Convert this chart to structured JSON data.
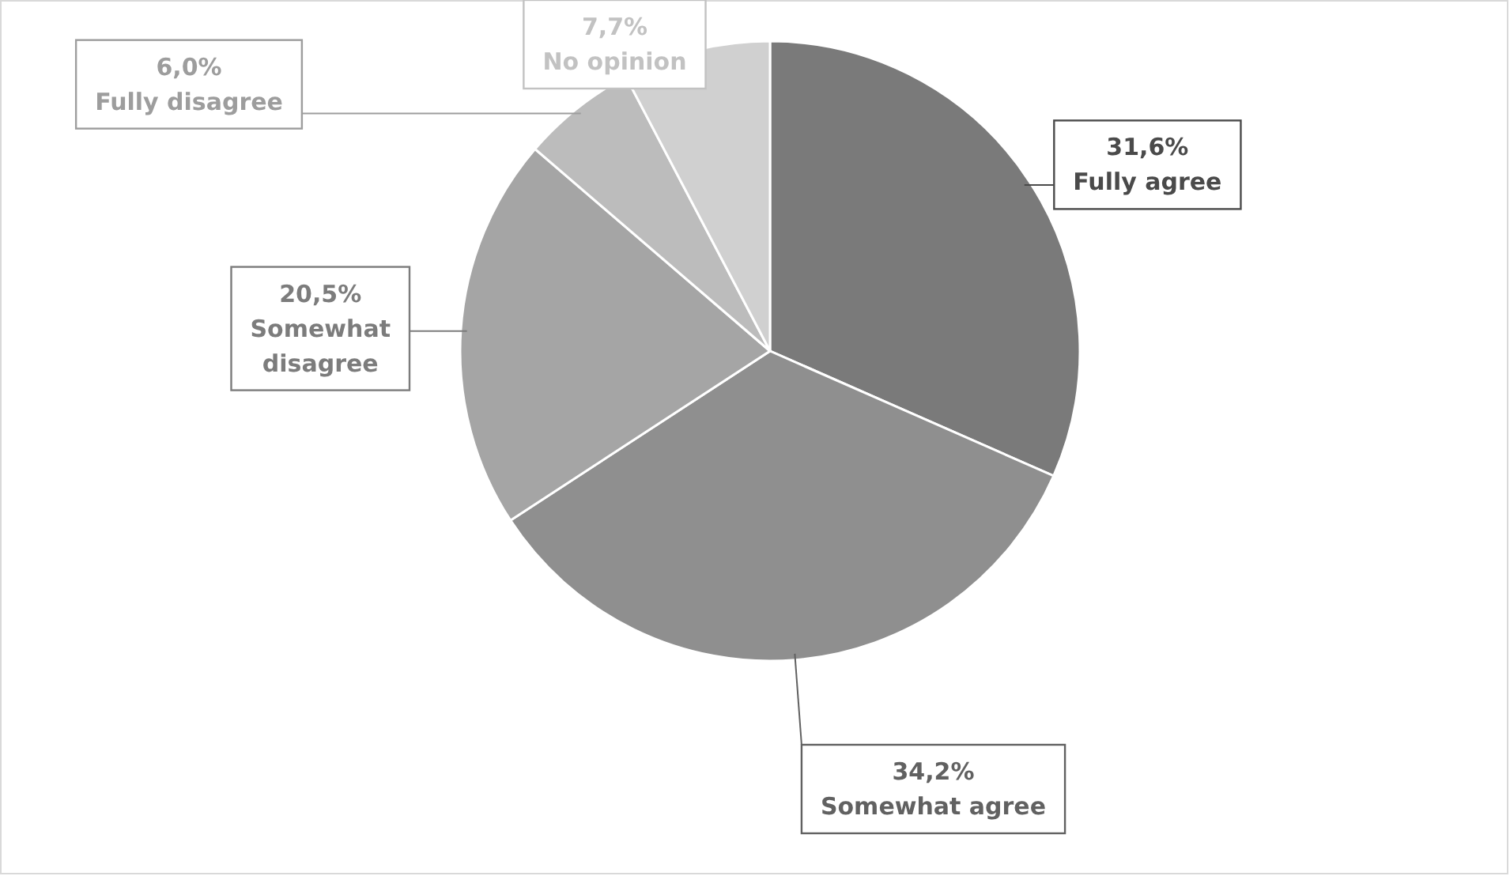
{
  "chart_data": {
    "type": "pie",
    "categories": [
      "Fully agree",
      "Somewhat agree",
      "Somewhat disagree",
      "Fully disagree",
      "No opinion"
    ],
    "values": [
      31.6,
      34.2,
      20.5,
      6.0,
      7.7
    ],
    "value_labels": [
      "31,6%",
      "34,2%",
      "20,5%",
      "6,0%",
      "7,7%"
    ],
    "colors": [
      "#7a7a7a",
      "#8f8f8f",
      "#a5a5a5",
      "#bcbcbc",
      "#d0d0d0"
    ],
    "legend": false
  }
}
